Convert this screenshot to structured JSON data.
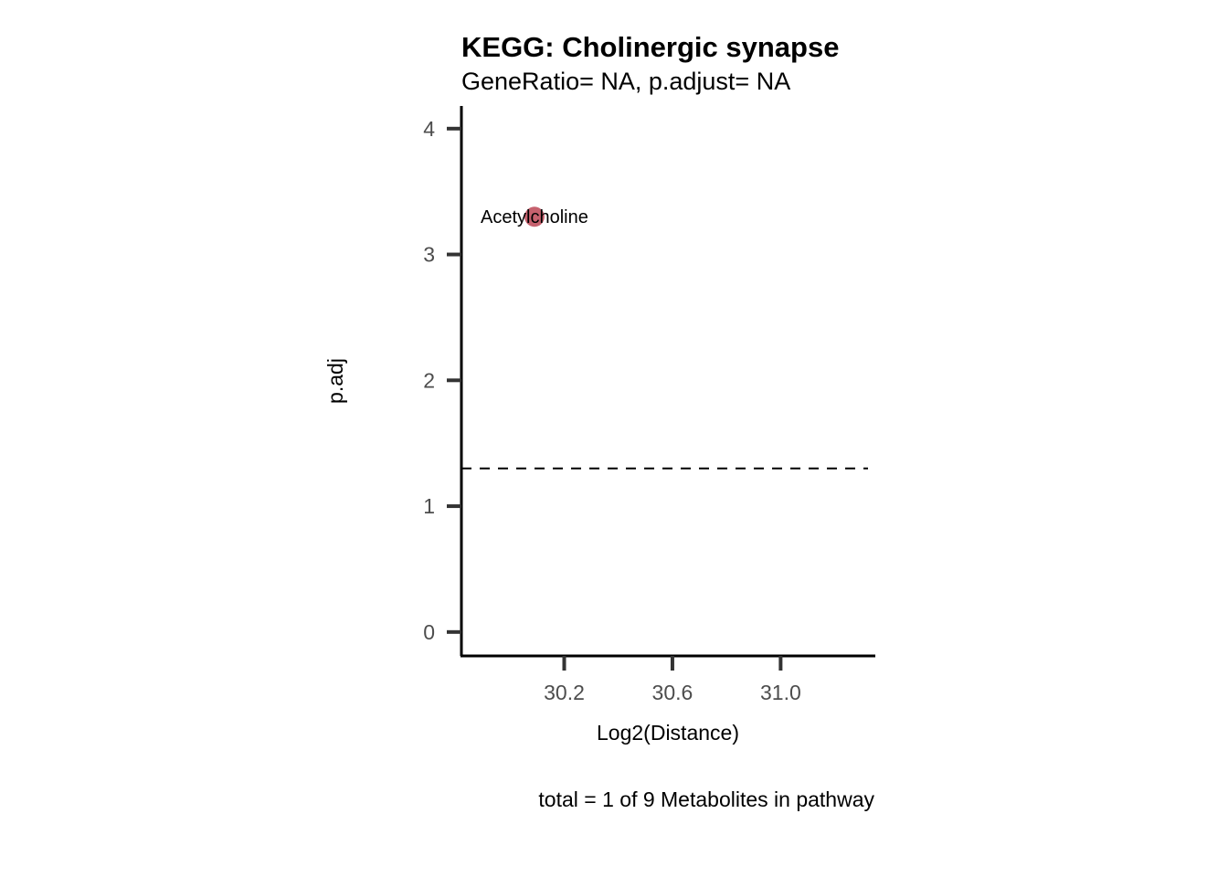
{
  "chart_data": {
    "type": "scatter",
    "title": "KEGG: Cholinergic synapse",
    "subtitle": "GeneRatio= NA, p.adjust= NA",
    "xlabel": "Log2(Distance)",
    "ylabel": "p.adj",
    "caption": "total = 1 of 9 Metabolites in pathway",
    "xlim": [
      29.82,
      31.35
    ],
    "ylim": [
      -0.19,
      4.18
    ],
    "x_ticks": [
      30.2,
      30.6,
      31.0
    ],
    "x_tick_labels": [
      "30.2",
      "30.6",
      "31.0"
    ],
    "y_ticks": [
      0,
      1,
      2,
      3,
      4
    ],
    "y_tick_labels": [
      "0",
      "1",
      "2",
      "3",
      "4"
    ],
    "threshold_y": 1.3,
    "points": [
      {
        "label": "Acetylcholine",
        "x": 30.09,
        "y": 3.3,
        "color": "#c0505e"
      }
    ],
    "grid": false,
    "legend": "none"
  }
}
